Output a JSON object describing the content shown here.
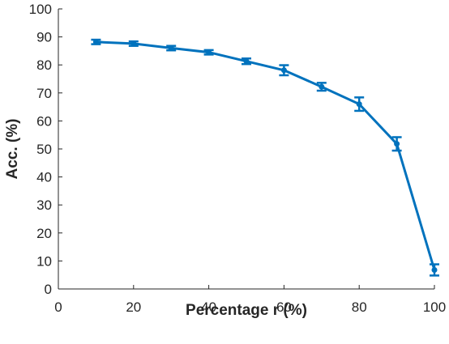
{
  "chart_data": {
    "type": "line",
    "title": "",
    "xlabel": "Percentage r (%)",
    "ylabel": "Acc. (%)",
    "xlim": [
      0,
      100
    ],
    "ylim": [
      0,
      100
    ],
    "xticks": [
      "0",
      "20",
      "40",
      "60",
      "80",
      "100"
    ],
    "yticks": [
      "0",
      "10",
      "20",
      "30",
      "40",
      "50",
      "60",
      "70",
      "80",
      "90",
      "100"
    ],
    "grid": false,
    "legend": "none",
    "series": [
      {
        "color": "#0072BD",
        "x": [
          10,
          20,
          30,
          40,
          50,
          60,
          70,
          80,
          90,
          100
        ],
        "y": [
          88.2,
          87.6,
          86.0,
          84.5,
          81.3,
          78.1,
          72.2,
          66.0,
          51.8,
          6.8
        ],
        "err": [
          0.8,
          0.8,
          0.8,
          0.8,
          1.0,
          1.8,
          1.4,
          2.4,
          2.4,
          2.0
        ]
      }
    ]
  }
}
